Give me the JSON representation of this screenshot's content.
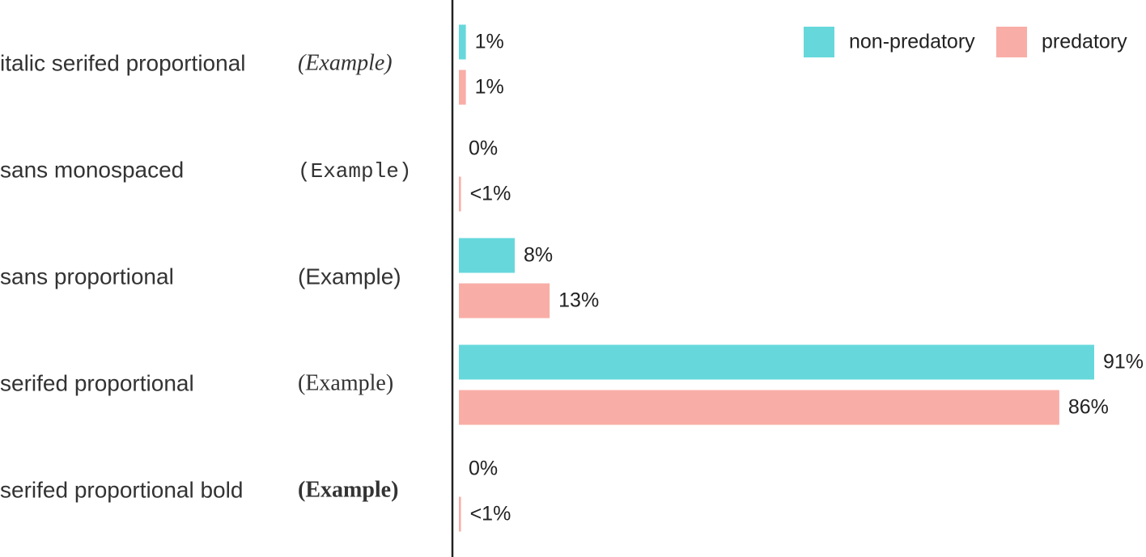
{
  "chart_data": {
    "type": "bar",
    "orientation": "horizontal",
    "categories": [
      "italic serifed proportional",
      "sans monospaced",
      "sans proportional",
      "serifed proportional",
      "serifed proportional bold"
    ],
    "examples": [
      "(Example)",
      "(Example)",
      "(Example)",
      "(Example)",
      "(Example)"
    ],
    "series": [
      {
        "name": "non-predatory",
        "color": "#66d8dc",
        "values": [
          1,
          0,
          8,
          91,
          0
        ],
        "value_labels": [
          "1%",
          "0%",
          "8%",
          "91%",
          "0%"
        ]
      },
      {
        "name": "predatory",
        "color": "#f8aea7",
        "values": [
          1,
          0.3,
          13,
          86,
          0.3
        ],
        "value_labels": [
          "1%",
          "<1%",
          "13%",
          "86%",
          "<1%"
        ]
      }
    ],
    "legend": "upper right"
  }
}
